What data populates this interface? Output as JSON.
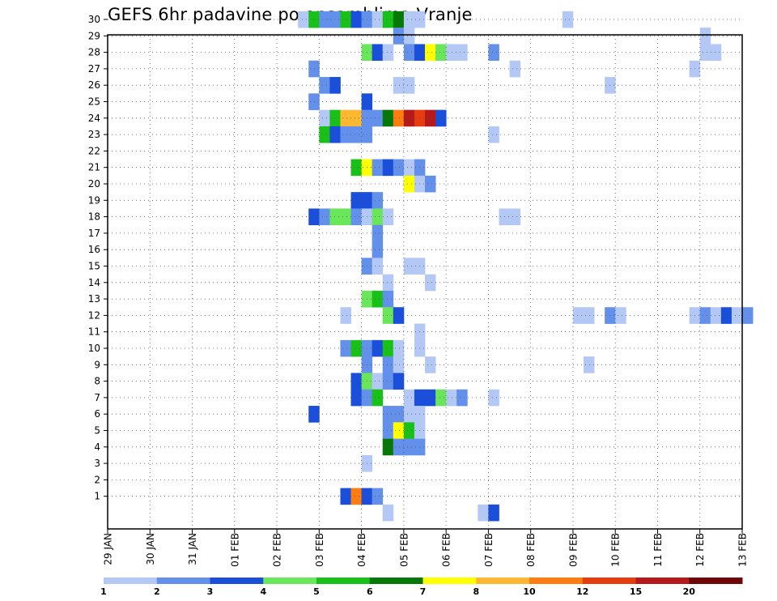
{
  "chart_data": {
    "type": "heatmap",
    "title": "GEFS 6hr padavine po ansamblima Vranje",
    "xlabel": "",
    "ylabel": "",
    "x_tick_labels": [
      "29 JAN",
      "30 JAN",
      "31 JAN",
      "01 FEB",
      "02 FEB",
      "03 FEB",
      "04 FEB",
      "05 FEB",
      "06 FEB",
      "07 FEB",
      "08 FEB",
      "09 FEB",
      "10 FEB",
      "11 FEB",
      "12 FEB",
      "13 FEB"
    ],
    "y_tick_labels": [
      "1",
      "2",
      "3",
      "4",
      "5",
      "6",
      "7",
      "8",
      "9",
      "10",
      "11",
      "12",
      "13",
      "14",
      "15",
      "16",
      "17",
      "18",
      "19",
      "20",
      "21",
      "22",
      "23",
      "24",
      "25",
      "26",
      "27",
      "28",
      "29",
      "30"
    ],
    "grid": true,
    "x_unit": "6-hour steps from 29 JAN 00",
    "colorbar": {
      "labels": [
        "1",
        "2",
        "3",
        "4",
        "5",
        "6",
        "7",
        "8",
        "10",
        "12",
        "15",
        "20"
      ],
      "colors": [
        "#b4c8f6",
        "#6290ea",
        "#1a4fdc",
        "#6ae65a",
        "#18c018",
        "#067806",
        "#ffff00",
        "#ffb830",
        "#ff7c10",
        "#e63c10",
        "#b41a1a",
        "#6e0808"
      ]
    },
    "cells": [
      {
        "m": 30,
        "t": [
          [
            18,
            0
          ],
          [
            19,
            4
          ],
          [
            20,
            1
          ],
          [
            21,
            1
          ],
          [
            22,
            4
          ],
          [
            23,
            2
          ],
          [
            24,
            1
          ],
          [
            25,
            0
          ],
          [
            26,
            4
          ],
          [
            27,
            5
          ],
          [
            28,
            0
          ],
          [
            29,
            0
          ],
          [
            43,
            0
          ]
        ]
      },
      {
        "m": 29,
        "t": [
          [
            27,
            1
          ],
          [
            28,
            0
          ],
          [
            56,
            0
          ]
        ]
      },
      {
        "m": 28,
        "t": [
          [
            24,
            3
          ],
          [
            25,
            2
          ],
          [
            26,
            0
          ],
          [
            28,
            1
          ],
          [
            29,
            2
          ],
          [
            30,
            6
          ],
          [
            31,
            3
          ],
          [
            32,
            0
          ],
          [
            33,
            0
          ],
          [
            36,
            1
          ],
          [
            56,
            0
          ],
          [
            57,
            0
          ]
        ]
      },
      {
        "m": 27,
        "t": [
          [
            19,
            1
          ],
          [
            38,
            0
          ],
          [
            55,
            0
          ]
        ]
      },
      {
        "m": 26,
        "t": [
          [
            20,
            1
          ],
          [
            21,
            2
          ],
          [
            27,
            0
          ],
          [
            28,
            0
          ],
          [
            47,
            0
          ]
        ]
      },
      {
        "m": 25,
        "t": [
          [
            19,
            1
          ],
          [
            24,
            2
          ]
        ]
      },
      {
        "m": 24,
        "t": [
          [
            20,
            0
          ],
          [
            21,
            4
          ],
          [
            22,
            7
          ],
          [
            23,
            7
          ],
          [
            24,
            1
          ],
          [
            25,
            1
          ],
          [
            26,
            5
          ],
          [
            27,
            8
          ],
          [
            28,
            10
          ],
          [
            29,
            9
          ],
          [
            30,
            10
          ],
          [
            31,
            2
          ]
        ]
      },
      {
        "m": 23,
        "t": [
          [
            20,
            4
          ],
          [
            21,
            2
          ],
          [
            22,
            1
          ],
          [
            23,
            1
          ],
          [
            24,
            1
          ],
          [
            36,
            0
          ]
        ]
      },
      {
        "m": 21,
        "t": [
          [
            23,
            4
          ],
          [
            24,
            6
          ],
          [
            25,
            1
          ],
          [
            26,
            2
          ],
          [
            27,
            1
          ],
          [
            28,
            0
          ],
          [
            29,
            1
          ]
        ]
      },
      {
        "m": 20,
        "t": [
          [
            28,
            6
          ],
          [
            29,
            0
          ],
          [
            30,
            1
          ]
        ]
      },
      {
        "m": 19,
        "t": [
          [
            23,
            2
          ],
          [
            24,
            2
          ],
          [
            25,
            1
          ]
        ]
      },
      {
        "m": 18,
        "t": [
          [
            19,
            2
          ],
          [
            20,
            1
          ],
          [
            21,
            3
          ],
          [
            22,
            3
          ],
          [
            23,
            1
          ],
          [
            24,
            0
          ],
          [
            25,
            3
          ],
          [
            26,
            0
          ],
          [
            37,
            0
          ],
          [
            38,
            0
          ]
        ]
      },
      {
        "m": 17,
        "t": [
          [
            25,
            1
          ]
        ]
      },
      {
        "m": 16,
        "t": [
          [
            25,
            1
          ]
        ]
      },
      {
        "m": 15,
        "t": [
          [
            24,
            1
          ],
          [
            25,
            0
          ],
          [
            28,
            0
          ],
          [
            29,
            0
          ]
        ]
      },
      {
        "m": 14,
        "t": [
          [
            26,
            0
          ],
          [
            30,
            0
          ]
        ]
      },
      {
        "m": 13,
        "t": [
          [
            24,
            3
          ],
          [
            25,
            4
          ],
          [
            26,
            1
          ]
        ]
      },
      {
        "m": 12,
        "t": [
          [
            22,
            0
          ],
          [
            26,
            3
          ],
          [
            27,
            2
          ],
          [
            44,
            0
          ],
          [
            45,
            0
          ],
          [
            47,
            1
          ],
          [
            48,
            0
          ],
          [
            55,
            0
          ],
          [
            56,
            1
          ],
          [
            57,
            0
          ],
          [
            58,
            2
          ],
          [
            59,
            0
          ],
          [
            60,
            1
          ]
        ]
      },
      {
        "m": 11,
        "t": [
          [
            29,
            0
          ]
        ]
      },
      {
        "m": 10,
        "t": [
          [
            22,
            1
          ],
          [
            23,
            4
          ],
          [
            24,
            1
          ],
          [
            25,
            2
          ],
          [
            26,
            4
          ],
          [
            27,
            0
          ],
          [
            29,
            0
          ]
        ]
      },
      {
        "m": 9,
        "t": [
          [
            24,
            1
          ],
          [
            26,
            1
          ],
          [
            27,
            0
          ],
          [
            30,
            0
          ],
          [
            45,
            0
          ]
        ]
      },
      {
        "m": 8,
        "t": [
          [
            23,
            2
          ],
          [
            24,
            3
          ],
          [
            25,
            0
          ],
          [
            26,
            1
          ],
          [
            27,
            2
          ]
        ]
      },
      {
        "m": 7,
        "t": [
          [
            23,
            2
          ],
          [
            24,
            1
          ],
          [
            25,
            4
          ],
          [
            28,
            0
          ],
          [
            29,
            2
          ],
          [
            30,
            2
          ],
          [
            31,
            3
          ],
          [
            32,
            0
          ],
          [
            33,
            1
          ],
          [
            36,
            0
          ]
        ]
      },
      {
        "m": 6,
        "t": [
          [
            19,
            2
          ],
          [
            26,
            1
          ],
          [
            27,
            1
          ],
          [
            28,
            0
          ],
          [
            29,
            0
          ]
        ]
      },
      {
        "m": 5,
        "t": [
          [
            26,
            1
          ],
          [
            27,
            6
          ],
          [
            28,
            4
          ],
          [
            29,
            0
          ]
        ]
      },
      {
        "m": 4,
        "t": [
          [
            26,
            5
          ],
          [
            27,
            1
          ],
          [
            28,
            1
          ],
          [
            29,
            1
          ]
        ]
      },
      {
        "m": 3,
        "t": [
          [
            24,
            0
          ]
        ]
      },
      {
        "m": 1,
        "t": [
          [
            22,
            2
          ],
          [
            23,
            8
          ],
          [
            24,
            2
          ],
          [
            25,
            1
          ]
        ]
      },
      {
        "m": 0,
        "t": [
          [
            26,
            0
          ],
          [
            35,
            0
          ],
          [
            36,
            2
          ]
        ]
      }
    ]
  }
}
